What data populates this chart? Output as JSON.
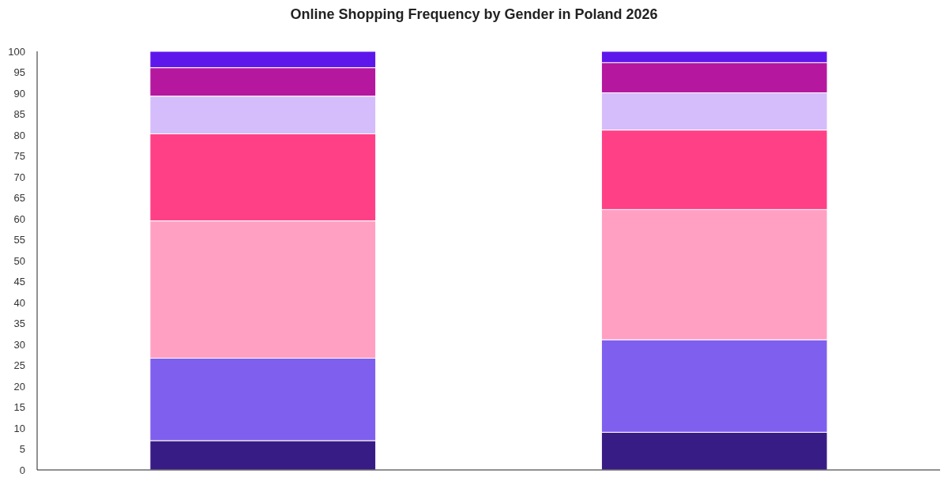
{
  "chart_data": {
    "type": "bar",
    "title": "Online Shopping Frequency by Gender in Poland 2026",
    "categories": [
      null,
      null
    ],
    "stacked": true,
    "series": [
      {
        "color": "#381c85",
        "values": [
          7.0,
          9.0
        ]
      },
      {
        "color": "#7f5fee",
        "values": [
          19.7,
          22.1
        ]
      },
      {
        "color": "#ffa0c3",
        "values": [
          32.8,
          31.1
        ]
      },
      {
        "color": "#ff4086",
        "values": [
          20.8,
          19.0
        ]
      },
      {
        "color": "#d5bcfb",
        "values": [
          9.0,
          8.9
        ]
      },
      {
        "color": "#b5179e",
        "values": [
          6.8,
          7.2
        ]
      },
      {
        "color": "#5e17eb",
        "values": [
          3.9,
          2.7
        ]
      }
    ],
    "ylim": [
      0,
      100
    ],
    "yticks": [
      0,
      5,
      10,
      15,
      20,
      25,
      30,
      35,
      40,
      45,
      50,
      55,
      60,
      65,
      70,
      75,
      80,
      85,
      90,
      95,
      100
    ],
    "grid": false
  }
}
